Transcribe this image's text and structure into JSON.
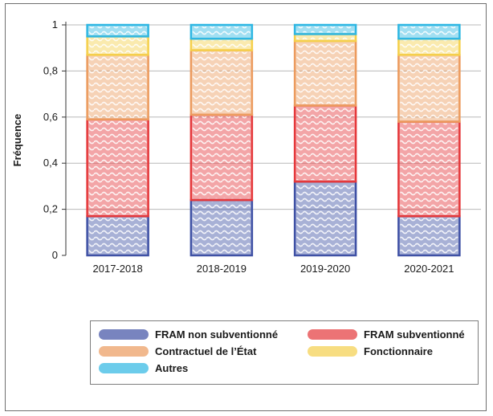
{
  "chart_data": {
    "type": "bar",
    "stacked": true,
    "ylabel": "Fréquence",
    "ylim": [
      0,
      1
    ],
    "yticks": [
      "0",
      "0,2",
      "0,4",
      "0,6",
      "0,8",
      "1"
    ],
    "categories": [
      "2017-2018",
      "2018-2019",
      "2019-2020",
      "2020-2021"
    ],
    "series": [
      {
        "name": "FRAM non subventionné",
        "color": "#3f51a5",
        "values": [
          0.17,
          0.24,
          0.32,
          0.17
        ]
      },
      {
        "name": "FRAM subventionné",
        "color": "#e5383b",
        "values": [
          0.42,
          0.37,
          0.33,
          0.41
        ]
      },
      {
        "name": "Contractuel de l’État",
        "color": "#ec9b5e",
        "values": [
          0.28,
          0.28,
          0.28,
          0.29
        ]
      },
      {
        "name": "Fonctionnaire",
        "color": "#f5d04c",
        "values": [
          0.08,
          0.05,
          0.03,
          0.07
        ]
      },
      {
        "name": "Autres",
        "color": "#2fb7e3",
        "values": [
          0.05,
          0.06,
          0.04,
          0.06
        ]
      }
    ],
    "grid": true,
    "legend_position": "bottom"
  }
}
